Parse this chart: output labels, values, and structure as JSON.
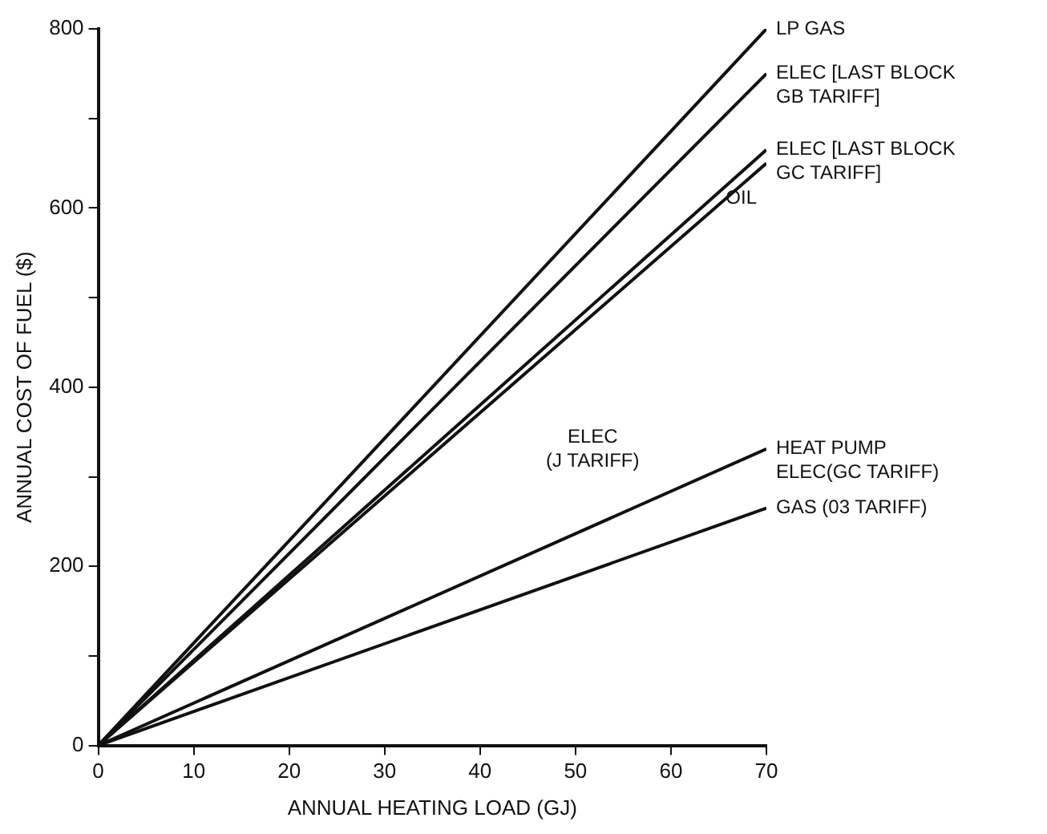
{
  "chart_data": {
    "type": "line",
    "xlabel": "ANNUAL HEATING LOAD (GJ)",
    "ylabel": "ANNUAL COST OF FUEL ($)",
    "x": [
      0,
      70
    ],
    "series": [
      {
        "name": "LP GAS",
        "color": "#111111",
        "values": [
          0,
          800
        ]
      },
      {
        "name": "ELEC [LAST BLOCK\nGB TARIFF]",
        "color": "#111111",
        "values": [
          0,
          750
        ]
      },
      {
        "name": "ELEC [LAST BLOCK\nGC TARIFF]",
        "color": "#111111",
        "values": [
          0,
          665
        ]
      },
      {
        "name": "OIL",
        "color": "#111111",
        "values": [
          0,
          650
        ]
      },
      {
        "name": "HEAT PUMP\nELEC(GC TARIFF)",
        "color": "#111111",
        "values": [
          0,
          331
        ]
      },
      {
        "name": "GAS (03 TARIFF)",
        "color": "#111111",
        "values": [
          0,
          265
        ]
      }
    ],
    "annotations": [
      "ELEC\n(J TARIFF)"
    ],
    "xlim": [
      0,
      70
    ],
    "xticks": [
      0,
      10,
      20,
      30,
      40,
      50,
      60,
      70
    ],
    "ylim": [
      0,
      800
    ],
    "yticks": [
      0,
      {
        "value": 100,
        "label": null
      },
      200,
      {
        "value": 300,
        "label": null
      },
      400,
      {
        "value": 500,
        "label": null
      },
      600,
      {
        "value": 700,
        "label": null
      },
      800
    ],
    "grid": false,
    "legend": false,
    "marker": "none",
    "line_style": "solid"
  }
}
